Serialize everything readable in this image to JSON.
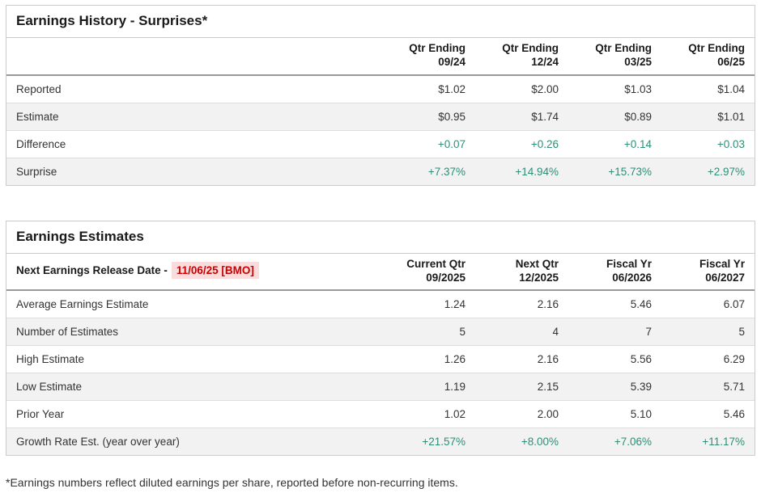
{
  "colors": {
    "green": "#2e8f76",
    "red": "#cc0000",
    "redBg": "#fbdcdc",
    "altRow": "#f2f2f2",
    "borderOuter": "#cccccc",
    "borderRow": "#dddddd",
    "borderHeader": "#999999",
    "text": "#333333",
    "heading": "#1a1a1a"
  },
  "history": {
    "title": "Earnings History - Surprises*",
    "columns": [
      "Qtr Ending\n09/24",
      "Qtr Ending\n12/24",
      "Qtr Ending\n03/25",
      "Qtr Ending\n06/25"
    ],
    "rows": [
      {
        "label": "Reported",
        "values": [
          "$1.02",
          "$2.00",
          "$1.03",
          "$1.04"
        ]
      },
      {
        "label": "Estimate",
        "values": [
          "$0.95",
          "$1.74",
          "$0.89",
          "$1.01"
        ]
      },
      {
        "label": "Difference",
        "values": [
          "+0.07",
          "+0.26",
          "+0.14",
          "+0.03"
        ]
      },
      {
        "label": "Surprise",
        "values": [
          "+7.37%",
          "+14.94%",
          "+15.73%",
          "+2.97%"
        ]
      }
    ]
  },
  "estimates": {
    "title": "Earnings Estimates",
    "release_label": "Next Earnings Release Date -",
    "release_value": "11/06/25 [BMO]",
    "columns": [
      "Current Qtr\n09/2025",
      "Next Qtr\n12/2025",
      "Fiscal Yr\n06/2026",
      "Fiscal Yr\n06/2027"
    ],
    "rows": [
      {
        "label": "Average Earnings Estimate",
        "values": [
          "1.24",
          "2.16",
          "5.46",
          "6.07"
        ]
      },
      {
        "label": "Number of Estimates",
        "values": [
          "5",
          "4",
          "7",
          "5"
        ]
      },
      {
        "label": "High Estimate",
        "values": [
          "1.26",
          "2.16",
          "5.56",
          "6.29"
        ]
      },
      {
        "label": "Low Estimate",
        "values": [
          "1.19",
          "2.15",
          "5.39",
          "5.71"
        ]
      },
      {
        "label": "Prior Year",
        "values": [
          "1.02",
          "2.00",
          "5.10",
          "5.46"
        ]
      },
      {
        "label": "Growth Rate Est. (year over year)",
        "values": [
          "+21.57%",
          "+8.00%",
          "+7.06%",
          "+11.17%"
        ]
      }
    ]
  },
  "footnote": "*Earnings numbers reflect diluted earnings per share, reported before non-recurring items."
}
